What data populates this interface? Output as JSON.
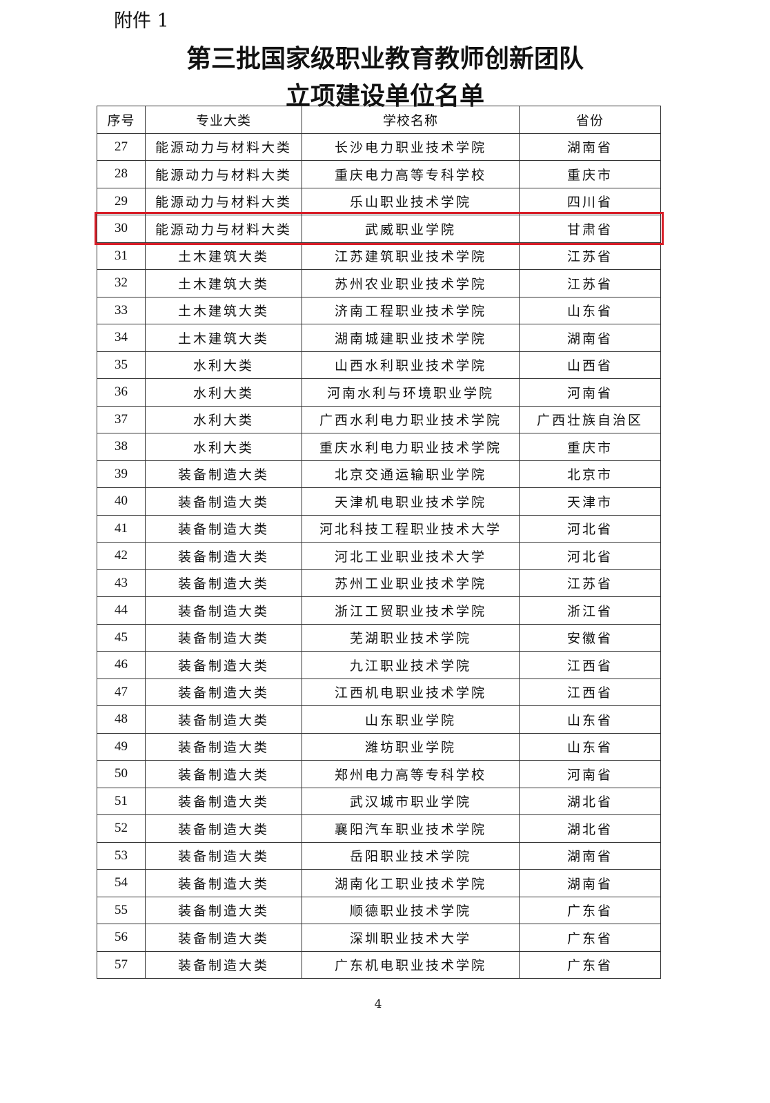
{
  "attachment_label": "附件 1",
  "title_line1": "第三批国家级职业教育教师创新团队",
  "title_line2": "立项建设单位名单",
  "highlight_color": "#d81e28",
  "highlighted_row": "30",
  "table": {
    "headers": [
      "序号",
      "专业大类",
      "学校名称",
      "省份"
    ],
    "rows": [
      [
        "27",
        "能源动力与材料大类",
        "长沙电力职业技术学院",
        "湖南省"
      ],
      [
        "28",
        "能源动力与材料大类",
        "重庆电力高等专科学校",
        "重庆市"
      ],
      [
        "29",
        "能源动力与材料大类",
        "乐山职业技术学院",
        "四川省"
      ],
      [
        "30",
        "能源动力与材料大类",
        "武威职业学院",
        "甘肃省"
      ],
      [
        "31",
        "土木建筑大类",
        "江苏建筑职业技术学院",
        "江苏省"
      ],
      [
        "32",
        "土木建筑大类",
        "苏州农业职业技术学院",
        "江苏省"
      ],
      [
        "33",
        "土木建筑大类",
        "济南工程职业技术学院",
        "山东省"
      ],
      [
        "34",
        "土木建筑大类",
        "湖南城建职业技术学院",
        "湖南省"
      ],
      [
        "35",
        "水利大类",
        "山西水利职业技术学院",
        "山西省"
      ],
      [
        "36",
        "水利大类",
        "河南水利与环境职业学院",
        "河南省"
      ],
      [
        "37",
        "水利大类",
        "广西水利电力职业技术学院",
        "广西壮族自治区"
      ],
      [
        "38",
        "水利大类",
        "重庆水利电力职业技术学院",
        "重庆市"
      ],
      [
        "39",
        "装备制造大类",
        "北京交通运输职业学院",
        "北京市"
      ],
      [
        "40",
        "装备制造大类",
        "天津机电职业技术学院",
        "天津市"
      ],
      [
        "41",
        "装备制造大类",
        "河北科技工程职业技术大学",
        "河北省"
      ],
      [
        "42",
        "装备制造大类",
        "河北工业职业技术大学",
        "河北省"
      ],
      [
        "43",
        "装备制造大类",
        "苏州工业职业技术学院",
        "江苏省"
      ],
      [
        "44",
        "装备制造大类",
        "浙江工贸职业技术学院",
        "浙江省"
      ],
      [
        "45",
        "装备制造大类",
        "芜湖职业技术学院",
        "安徽省"
      ],
      [
        "46",
        "装备制造大类",
        "九江职业技术学院",
        "江西省"
      ],
      [
        "47",
        "装备制造大类",
        "江西机电职业技术学院",
        "江西省"
      ],
      [
        "48",
        "装备制造大类",
        "山东职业学院",
        "山东省"
      ],
      [
        "49",
        "装备制造大类",
        "潍坊职业学院",
        "山东省"
      ],
      [
        "50",
        "装备制造大类",
        "郑州电力高等专科学校",
        "河南省"
      ],
      [
        "51",
        "装备制造大类",
        "武汉城市职业学院",
        "湖北省"
      ],
      [
        "52",
        "装备制造大类",
        "襄阳汽车职业技术学院",
        "湖北省"
      ],
      [
        "53",
        "装备制造大类",
        "岳阳职业技术学院",
        "湖南省"
      ],
      [
        "54",
        "装备制造大类",
        "湖南化工职业技术学院",
        "湖南省"
      ],
      [
        "55",
        "装备制造大类",
        "顺德职业技术学院",
        "广东省"
      ],
      [
        "56",
        "装备制造大类",
        "深圳职业技术大学",
        "广东省"
      ],
      [
        "57",
        "装备制造大类",
        "广东机电职业技术学院",
        "广东省"
      ]
    ]
  },
  "page_number": "4"
}
